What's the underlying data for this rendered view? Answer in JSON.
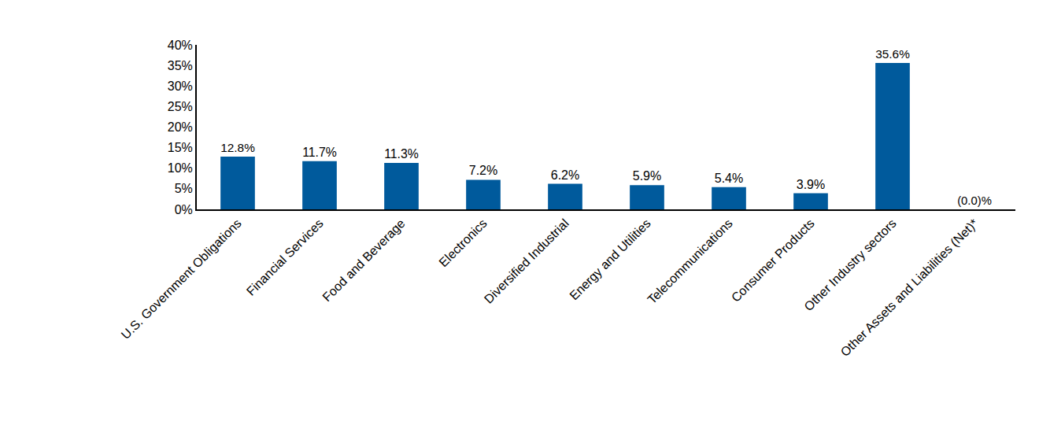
{
  "chart_data": {
    "type": "bar",
    "categories": [
      "U.S. Government Obligations",
      "Financial Services",
      "Food and Beverage",
      "Electronics",
      "Diversified Industrial",
      "Energy and Utilities",
      "Telecommunications",
      "Consumer Products",
      "Other Industry sectors",
      "Other Assets and Liabilities (Net)*"
    ],
    "values": [
      12.8,
      11.7,
      11.3,
      7.2,
      6.2,
      5.9,
      5.4,
      3.9,
      35.6,
      0.0
    ],
    "value_labels": [
      "12.8%",
      "11.7%",
      "11.3%",
      "7.2%",
      "6.2%",
      "5.9%",
      "5.4%",
      "3.9%",
      "35.6%",
      "(0.0)%"
    ],
    "color": "#005a9c",
    "ylim": [
      0,
      40
    ],
    "yticks": [
      {
        "value": 0,
        "label": "0%"
      },
      {
        "value": 5,
        "label": "5%"
      },
      {
        "value": 10,
        "label": "10%"
      },
      {
        "value": 15,
        "label": "15%"
      },
      {
        "value": 20,
        "label": "20%"
      },
      {
        "value": 25,
        "label": "25%"
      },
      {
        "value": 30,
        "label": "30%"
      },
      {
        "value": 35,
        "label": "35%"
      },
      {
        "value": 40,
        "label": "40%"
      }
    ],
    "grid": false,
    "data_labels": true
  }
}
